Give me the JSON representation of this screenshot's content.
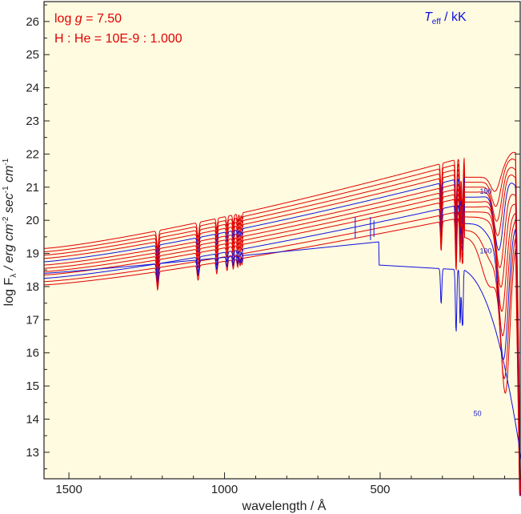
{
  "chart_data": {
    "type": "line",
    "title": "",
    "xlabel": "wavelength / Å",
    "ylabel_parts": {
      "prefix": "log F",
      "sub": "λ",
      "mid": " / erg cm",
      "sup1": "-2",
      "mid2": " sec",
      "sup2": "-1",
      "mid3": " cm",
      "sup3": "-1"
    },
    "xlim": [
      1580,
      50
    ],
    "ylim": [
      12.2,
      26.6
    ],
    "x_ticks": [
      1500,
      1000,
      500
    ],
    "y_ticks": [
      13,
      14,
      15,
      16,
      17,
      18,
      19,
      20,
      21,
      22,
      23,
      24,
      25,
      26
    ],
    "annotations": {
      "logg_prefix": "log ",
      "logg_g": "g",
      "logg_value": " = 7.50",
      "abundance": "H : He = 10E-9 : 1.000",
      "teff_T": "T",
      "teff_sub": "eff",
      "teff_unit": " / kK"
    },
    "series_labels": [
      {
        "text": "150",
        "x": 180,
        "y": 20.8
      },
      {
        "text": "100",
        "x": 180,
        "y": 19.0
      },
      {
        "text": "50",
        "x": 200,
        "y": 14.1
      }
    ],
    "colors": {
      "background": "#fffbe0",
      "red": "#e00000",
      "blue": "#1010e0"
    },
    "series": [
      {
        "color": "red",
        "a": 19.15,
        "peak_x": 70,
        "peak_y": 22.05,
        "hi_y": 21.9
      },
      {
        "color": "red",
        "a": 19.05,
        "peak_x": 75,
        "peak_y": 21.85,
        "hi_y": 21.75
      },
      {
        "color": "red",
        "a": 18.95,
        "peak_x": 80,
        "peak_y": 21.6,
        "hi_y": 21.6
      },
      {
        "color": "red",
        "a": 18.85,
        "peak_x": 85,
        "peak_y": 21.4,
        "hi_y": 21.45
      },
      {
        "color": "blue",
        "a": 18.75,
        "peak_x": 90,
        "peak_y": 21.2,
        "hi_y": 21.3
      },
      {
        "color": "red",
        "a": 18.65,
        "peak_x": 95,
        "peak_y": 20.9,
        "hi_y": 21.15
      },
      {
        "color": "red",
        "a": 18.55,
        "peak_x": 100,
        "peak_y": 20.6,
        "hi_y": 21.0
      },
      {
        "color": "red",
        "a": 18.45,
        "peak_x": 110,
        "peak_y": 20.2,
        "hi_y": 20.85
      },
      {
        "color": "red",
        "a": 18.35,
        "peak_x": 115,
        "peak_y": 19.8,
        "hi_y": 20.7
      },
      {
        "color": "blue",
        "a": 18.25,
        "peak_x": 125,
        "peak_y": 19.3,
        "hi_y": 20.5
      },
      {
        "color": "red",
        "a": 18.15,
        "peak_x": 135,
        "peak_y": 18.7,
        "hi_y": 20.3
      },
      {
        "color": "red",
        "a": 18.05,
        "peak_x": 145,
        "peak_y": 18.0,
        "hi_y": 20.1
      },
      {
        "color": "blue",
        "a": 18.4,
        "peak_x": 180,
        "peak_y": 17.5,
        "hi_y": 18.6,
        "cool": true
      }
    ]
  }
}
